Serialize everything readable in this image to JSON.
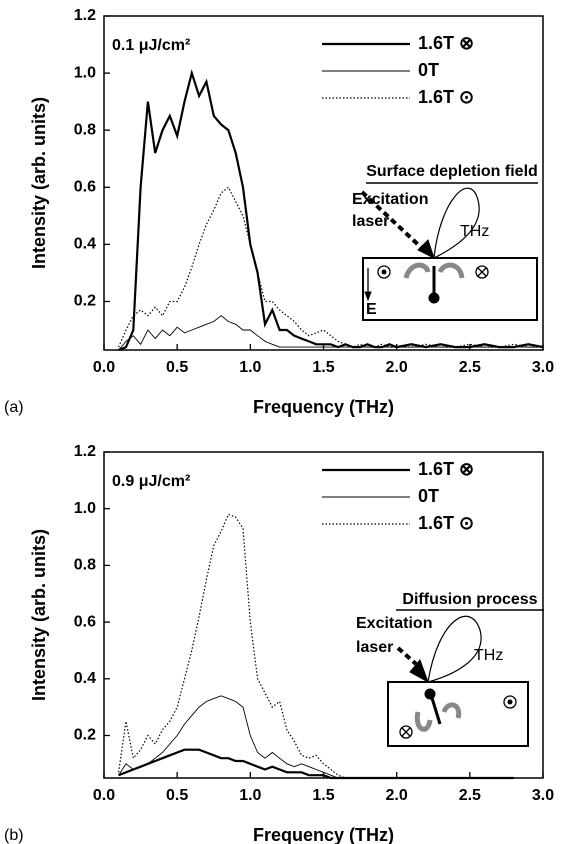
{
  "chart_data": [
    {
      "type": "line",
      "panel_label": "(a)",
      "xlabel": "Frequency (THz)",
      "ylabel": "Intensity (arb. units)",
      "annotation": "0.1 μJ/cm²",
      "inset": {
        "title": "Surface depletion field",
        "labels": [
          "Excitation",
          "laser",
          "THz",
          "E"
        ]
      },
      "xlim": [
        0,
        3
      ],
      "ylim": [
        0.03,
        1.2
      ],
      "xticks": [
        {
          "value": 0,
          "label": "0.0"
        },
        0.5,
        {
          "value": 1,
          "label": "1.0"
        },
        1.5,
        {
          "value": 2,
          "label": "2.0"
        },
        2.5,
        {
          "value": 3,
          "label": "3.0"
        }
      ],
      "yticks": [
        0.2,
        0.4,
        0.6,
        0.8,
        {
          "value": 1,
          "label": "1.0"
        },
        1.2
      ],
      "x": [
        0.1,
        0.15,
        0.2,
        0.25,
        0.3,
        0.35,
        0.4,
        0.45,
        0.5,
        0.55,
        0.6,
        0.65,
        0.7,
        0.75,
        0.8,
        0.85,
        0.9,
        0.95,
        1.0,
        1.05,
        1.1,
        1.15,
        1.2,
        1.25,
        1.3,
        1.35,
        1.4,
        1.45,
        1.5,
        1.55,
        1.6,
        1.65,
        1.7,
        1.75,
        1.8,
        1.85,
        1.9,
        1.95,
        2.0,
        2.1,
        2.2,
        2.3,
        2.4,
        2.5,
        2.6,
        2.7,
        2.8,
        2.9,
        3.0
      ],
      "series": [
        {
          "name": "1.6T ⊗",
          "color": "#000000",
          "line_style": "solid",
          "line_width": 2.2,
          "values": [
            0.03,
            0.04,
            0.1,
            0.6,
            0.9,
            0.72,
            0.8,
            0.85,
            0.78,
            0.9,
            1.0,
            0.92,
            0.97,
            0.85,
            0.82,
            0.8,
            0.72,
            0.6,
            0.4,
            0.3,
            0.12,
            0.17,
            0.1,
            0.1,
            0.08,
            0.07,
            0.06,
            0.05,
            0.05,
            0.05,
            0.04,
            0.05,
            0.04,
            0.04,
            0.05,
            0.04,
            0.04,
            0.05,
            0.04,
            0.05,
            0.04,
            0.05,
            0.04,
            0.04,
            0.05,
            0.04,
            0.04,
            0.05,
            0.04
          ]
        },
        {
          "name": "0T",
          "color": "#000000",
          "line_style": "solid",
          "line_width": 0.9,
          "values": [
            0.03,
            0.06,
            0.08,
            0.05,
            0.1,
            0.07,
            0.1,
            0.08,
            0.11,
            0.09,
            0.1,
            0.11,
            0.12,
            0.13,
            0.15,
            0.13,
            0.12,
            0.1,
            0.1,
            0.08,
            0.06,
            0.05,
            0.04,
            0.04,
            0.04,
            0.04,
            0.04,
            0.04,
            0.04,
            0.04,
            0.04,
            0.04,
            0.04,
            0.04,
            0.04,
            0.04,
            0.04,
            0.04,
            0.04,
            0.04,
            0.04,
            0.04,
            0.04,
            0.04,
            0.04,
            0.04,
            0.04,
            0.04,
            0.04
          ]
        },
        {
          "name": "1.6T ⊙",
          "color": "#000000",
          "line_style": "dotted",
          "line_width": 1.2,
          "values": [
            0.04,
            0.1,
            0.15,
            0.17,
            0.15,
            0.18,
            0.15,
            0.2,
            0.2,
            0.25,
            0.32,
            0.4,
            0.47,
            0.52,
            0.58,
            0.6,
            0.55,
            0.5,
            0.4,
            0.3,
            0.2,
            0.2,
            0.17,
            0.15,
            0.13,
            0.1,
            0.08,
            0.09,
            0.1,
            0.08,
            0.06,
            0.05,
            0.04,
            0.05,
            0.04,
            0.04,
            0.05,
            0.04,
            0.04,
            0.04,
            0.05,
            0.04,
            0.04,
            0.05,
            0.04,
            0.04,
            0.05,
            0.04,
            0.04
          ]
        }
      ]
    },
    {
      "type": "line",
      "panel_label": "(b)",
      "xlabel": "Frequency (THz)",
      "ylabel": "Intensity (arb. units)",
      "annotation": "0.9 μJ/cm²",
      "inset": {
        "title": "Diffusion process",
        "labels": [
          "Excitation",
          "laser",
          "THz"
        ]
      },
      "xlim": [
        0,
        3
      ],
      "ylim": [
        0.05,
        1.2
      ],
      "xticks": [
        {
          "value": 0,
          "label": "0.0"
        },
        0.5,
        {
          "value": 1,
          "label": "1.0"
        },
        1.5,
        {
          "value": 2,
          "label": "2.0"
        },
        2.5,
        {
          "value": 3,
          "label": "3.0"
        }
      ],
      "yticks": [
        0.2,
        0.4,
        0.6,
        0.8,
        {
          "value": 1,
          "label": "1.0"
        },
        1.2
      ],
      "x": [
        0.1,
        0.15,
        0.2,
        0.25,
        0.3,
        0.35,
        0.4,
        0.45,
        0.5,
        0.55,
        0.6,
        0.65,
        0.7,
        0.75,
        0.8,
        0.85,
        0.9,
        0.95,
        1.0,
        1.05,
        1.1,
        1.15,
        1.2,
        1.25,
        1.3,
        1.35,
        1.4,
        1.45,
        1.5,
        1.55,
        1.6,
        1.65,
        1.7,
        1.75,
        1.8,
        1.85,
        1.9,
        1.95,
        2.0,
        2.1,
        2.2,
        2.3,
        2.4,
        2.5,
        2.6,
        2.7,
        2.8,
        2.9,
        3.0
      ],
      "series": [
        {
          "name": "1.6T ⊗",
          "color": "#000000",
          "line_style": "solid",
          "line_width": 2.2,
          "values": [
            0.06,
            0.07,
            0.08,
            0.09,
            0.1,
            0.11,
            0.12,
            0.13,
            0.14,
            0.15,
            0.15,
            0.15,
            0.14,
            0.13,
            0.12,
            0.12,
            0.11,
            0.11,
            0.1,
            0.09,
            0.08,
            0.09,
            0.08,
            0.07,
            0.07,
            0.07,
            0.06,
            0.06,
            0.06,
            0.05,
            0.05,
            0.05,
            0.05,
            0.05,
            0.05,
            0.05,
            0.05,
            0.05,
            0.05,
            0.05,
            0.05,
            0.05,
            0.05,
            0.05,
            0.05,
            0.05,
            0.05,
            null,
            null
          ]
        },
        {
          "name": "0T",
          "color": "#000000",
          "line_style": "solid",
          "line_width": 0.9,
          "values": [
            0.06,
            0.1,
            0.08,
            0.09,
            0.1,
            0.12,
            0.14,
            0.17,
            0.2,
            0.24,
            0.27,
            0.3,
            0.32,
            0.33,
            0.34,
            0.33,
            0.32,
            0.3,
            0.2,
            0.14,
            0.12,
            0.14,
            0.12,
            0.1,
            0.09,
            0.1,
            0.09,
            0.08,
            0.07,
            0.06,
            0.05,
            0.05,
            0.05,
            0.05,
            0.05,
            0.05,
            0.05,
            0.05,
            0.05,
            0.05,
            0.05,
            0.05,
            0.05,
            0.05,
            0.05,
            0.05,
            0.05,
            null,
            null
          ]
        },
        {
          "name": "1.6T ⊙",
          "color": "#000000",
          "line_style": "dotted",
          "line_width": 1.2,
          "values": [
            0.07,
            0.25,
            0.12,
            0.15,
            0.2,
            0.17,
            0.22,
            0.25,
            0.3,
            0.4,
            0.5,
            0.62,
            0.75,
            0.87,
            0.92,
            0.98,
            0.97,
            0.93,
            0.6,
            0.4,
            0.35,
            0.3,
            0.32,
            0.22,
            0.18,
            0.13,
            0.12,
            0.13,
            0.1,
            0.08,
            0.06,
            0.05,
            0.05,
            0.05,
            0.05,
            0.05,
            0.05,
            0.05,
            0.05,
            0.05,
            0.05,
            0.05,
            0.05,
            0.05,
            0.05,
            0.05,
            0.05,
            null,
            null
          ]
        }
      ]
    }
  ]
}
